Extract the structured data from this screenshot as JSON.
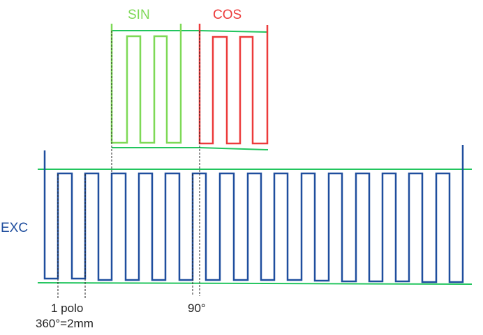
{
  "colors": {
    "sin": "#7ed957",
    "cos": "#ec3b3b",
    "exc": "#1f4e9e",
    "guide": "#22c55e",
    "text": "#222222"
  },
  "labels": {
    "sin": "SIN",
    "cos": "COS",
    "exc": "EXC",
    "pole_line1": "1 polo",
    "pole_line2": "360°=2mm",
    "angle": "90°"
  }
}
